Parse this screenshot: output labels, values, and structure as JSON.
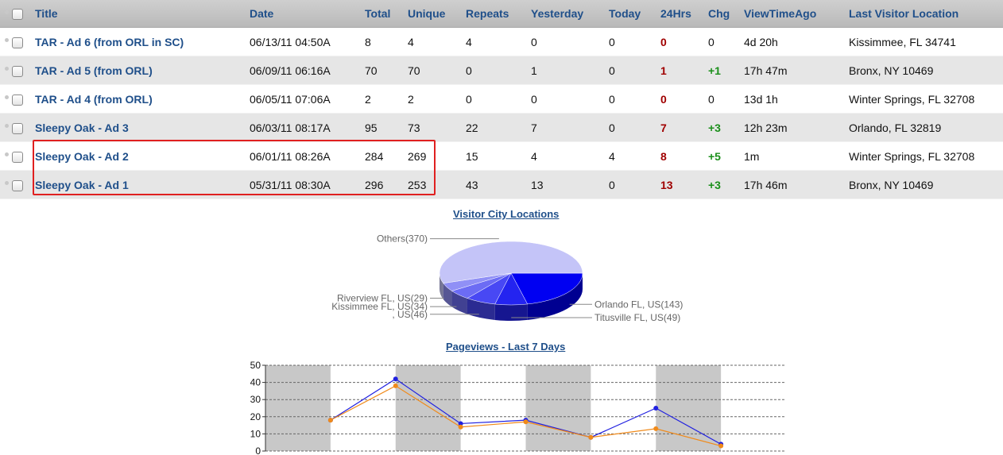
{
  "table": {
    "headers": [
      "Title",
      "Date",
      "Total",
      "Unique",
      "Repeats",
      "Yesterday",
      "Today",
      "24Hrs",
      "Chg",
      "ViewTimeAgo",
      "Last Visitor Location"
    ],
    "rows": [
      {
        "title": "TAR - Ad 6 (from ORL in SC)",
        "date": "06/13/11 04:50A",
        "total": "8",
        "unique": "4",
        "repeats": "4",
        "yesterday": "0",
        "today": "0",
        "hrs24": "0",
        "hrs24_color": "red",
        "chg": "0",
        "chg_color": "plain",
        "ago": "4d 20h",
        "location": "Kissimmee, FL 34741"
      },
      {
        "title": "TAR - Ad 5 (from ORL)",
        "date": "06/09/11 06:16A",
        "total": "70",
        "unique": "70",
        "repeats": "0",
        "yesterday": "1",
        "today": "0",
        "hrs24": "1",
        "hrs24_color": "red",
        "chg": "+1",
        "chg_color": "green",
        "ago": "17h 47m",
        "location": "Bronx, NY 10469"
      },
      {
        "title": "TAR - Ad 4 (from ORL)",
        "date": "06/05/11 07:06A",
        "total": "2",
        "unique": "2",
        "repeats": "0",
        "yesterday": "0",
        "today": "0",
        "hrs24": "0",
        "hrs24_color": "red",
        "chg": "0",
        "chg_color": "plain",
        "ago": "13d 1h",
        "location": "Winter Springs, FL 32708"
      },
      {
        "title": "Sleepy Oak - Ad 3",
        "date": "06/03/11 08:17A",
        "total": "95",
        "unique": "73",
        "repeats": "22",
        "yesterday": "7",
        "today": "0",
        "hrs24": "7",
        "hrs24_color": "red",
        "chg": "+3",
        "chg_color": "green",
        "ago": "12h 23m",
        "location": "Orlando, FL 32819"
      },
      {
        "title": "Sleepy Oak - Ad 2",
        "date": "06/01/11 08:26A",
        "total": "284",
        "unique": "269",
        "repeats": "15",
        "yesterday": "4",
        "today": "4",
        "hrs24": "8",
        "hrs24_color": "red",
        "chg": "+5",
        "chg_color": "green",
        "ago": "1m",
        "location": "Winter Springs, FL 32708"
      },
      {
        "title": "Sleepy Oak - Ad 1",
        "date": "05/31/11 08:30A",
        "total": "296",
        "unique": "253",
        "repeats": "43",
        "yesterday": "13",
        "today": "0",
        "hrs24": "13",
        "hrs24_color": "red",
        "chg": "+3",
        "chg_color": "green",
        "ago": "17h 46m",
        "location": "Bronx, NY 10469"
      }
    ]
  },
  "chart_data": [
    {
      "type": "pie",
      "title": "Visitor City Locations",
      "slices": [
        {
          "label": "Orlando FL, US(143)",
          "value": 143,
          "color": "#0000f2"
        },
        {
          "label": "Titusville FL, US(49)",
          "value": 49,
          "color": "#2424f0"
        },
        {
          "label": ", US(46)",
          "value": 46,
          "color": "#4848f4"
        },
        {
          "label": "Kissimmee FL, US(34)",
          "value": 34,
          "color": "#6c6cf4"
        },
        {
          "label": "Riverview FL, US(29)",
          "value": 29,
          "color": "#9090f6"
        },
        {
          "label": "Others(370)",
          "value": 370,
          "color": "#c4c4f8"
        }
      ]
    },
    {
      "type": "line",
      "title": "Pageviews - Last 7 Days",
      "ylim": [
        0,
        50
      ],
      "yticks": [
        "0",
        "10",
        "20",
        "30",
        "40",
        "50"
      ],
      "grid": true,
      "series": [
        {
          "color": "#2020e0",
          "values": [
            18,
            42,
            16,
            18,
            8,
            25,
            4
          ]
        },
        {
          "color": "#f08a1a",
          "values": [
            18,
            38,
            14,
            17,
            8,
            13,
            3
          ]
        }
      ]
    }
  ]
}
